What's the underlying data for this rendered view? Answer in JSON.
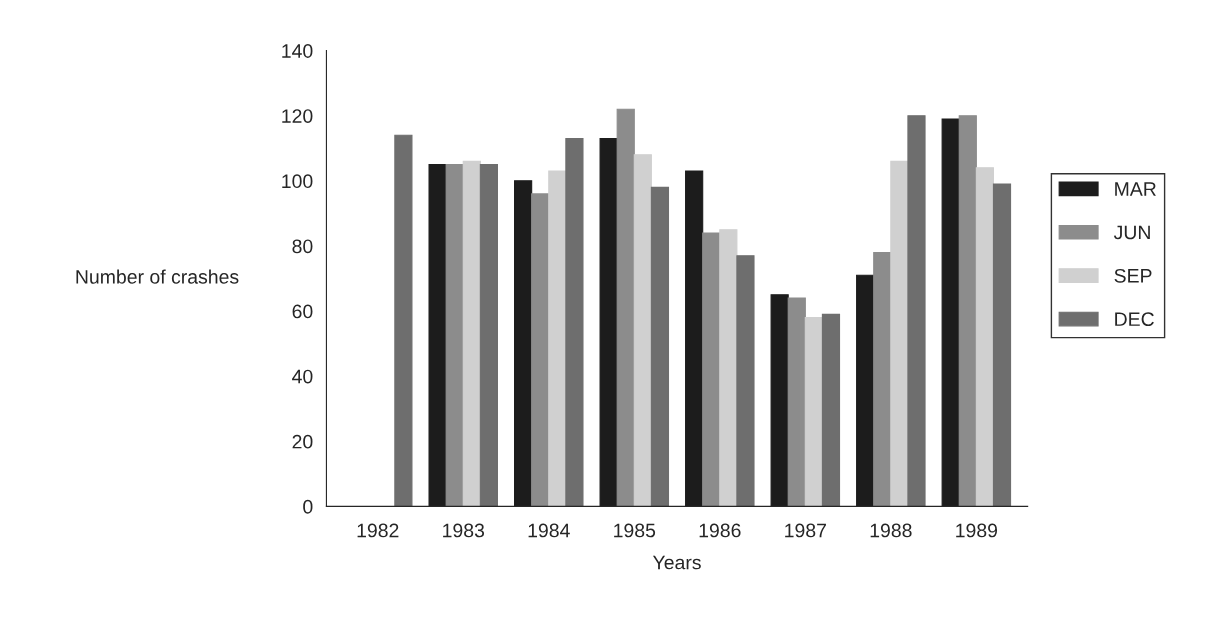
{
  "chart_data": {
    "type": "bar",
    "xlabel": "Years",
    "ylabel": "Number of crashes",
    "categories": [
      "1982",
      "1983",
      "1984",
      "1985",
      "1986",
      "1987",
      "1988",
      "1989"
    ],
    "series": [
      {
        "name": "MAR",
        "color": "#1c1c1c",
        "values": [
          null,
          105,
          100,
          113,
          103,
          65,
          71,
          119
        ]
      },
      {
        "name": "JUN",
        "color": "#8c8c8c",
        "values": [
          null,
          105,
          96,
          122,
          84,
          64,
          78,
          120
        ]
      },
      {
        "name": "SEP",
        "color": "#d0d0d0",
        "values": [
          null,
          106,
          103,
          108,
          85,
          58,
          106,
          104
        ]
      },
      {
        "name": "DEC",
        "color": "#6e6e6e",
        "values": [
          114,
          105,
          113,
          98,
          77,
          59,
          120,
          99
        ]
      }
    ],
    "ylim": [
      0,
      140
    ],
    "yticks": [
      0,
      20,
      40,
      60,
      80,
      100,
      120,
      140
    ],
    "grid": false,
    "legend": "right"
  }
}
